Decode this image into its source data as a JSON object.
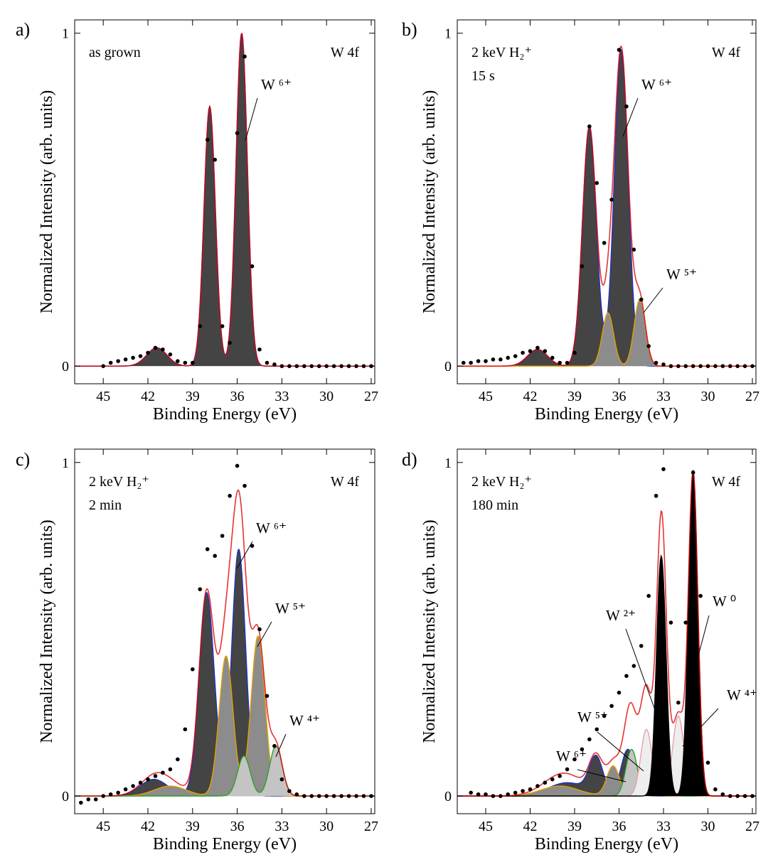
{
  "chart_data": [
    {
      "type": "line",
      "panel_label": "a)",
      "notes": [
        "as grown"
      ],
      "region": "W 4f",
      "xlabel": "Binding Energy (eV)",
      "ylabel": "Normalized Intensity (arb. units)",
      "xlim": [
        46.92,
        26.76
      ],
      "ylim": [
        -0.053,
        1.04
      ],
      "xticks": [
        45,
        42,
        39,
        36,
        33,
        30,
        27
      ],
      "yticks": [
        0,
        1
      ],
      "fit_color": "#e00000",
      "measured": {
        "x": [
          45,
          44.5,
          44,
          43.5,
          43,
          42.5,
          42,
          41.5,
          41,
          40.5,
          40,
          39.5,
          39,
          38.5,
          38,
          37.5,
          37,
          36.5,
          36,
          35.5,
          35,
          34.5,
          34,
          33.5,
          33,
          32.5,
          32,
          31.5,
          31,
          30.5,
          30,
          29.5,
          29,
          28.5,
          28,
          27.5,
          27
        ],
        "values": [
          0,
          0.01,
          0.015,
          0.02,
          0.025,
          0.03,
          0.04,
          0.055,
          0.05,
          0.035,
          0.015,
          0.01,
          0.01,
          0.12,
          0.68,
          0.62,
          0.12,
          0.07,
          0.7,
          0.93,
          0.3,
          0.05,
          0.01,
          0.005,
          0,
          0,
          0,
          0,
          0,
          0,
          0,
          0,
          0,
          0,
          0,
          0,
          0
        ]
      },
      "components": [
        {
          "name": "W ⁶⁺",
          "color": "#2233bb",
          "fill": "#444444",
          "peaks": [
            {
              "center": 35.7,
              "height": 1.0,
              "fwhm": 0.9
            },
            {
              "center": 37.85,
              "height": 0.78,
              "fwhm": 0.9
            },
            {
              "center": 41.4,
              "height": 0.055,
              "fwhm": 1.6
            }
          ]
        }
      ]
    },
    {
      "type": "line",
      "panel_label": "b)",
      "notes": [
        "2 keV H₂⁺",
        "15 s"
      ],
      "region": "W 4f",
      "xlabel": "Binding Energy (eV)",
      "ylabel": "Normalized Intensity (arb. units)",
      "xlim": [
        46.92,
        26.76
      ],
      "ylim": [
        -0.053,
        1.04
      ],
      "xticks": [
        45,
        42,
        39,
        36,
        33,
        30,
        27
      ],
      "yticks": [
        0,
        1
      ],
      "fit_color": "#e00000",
      "measured": {
        "x": [
          46.5,
          46,
          45.5,
          45,
          44.5,
          44,
          43.5,
          43,
          42.5,
          42,
          41.5,
          41,
          40.5,
          40,
          39.5,
          39,
          38.5,
          38,
          37.5,
          37,
          36.5,
          36,
          35.5,
          35,
          34.5,
          34,
          33.5,
          33,
          32.5,
          32,
          31.5,
          31,
          30.5,
          30,
          29.5,
          29,
          28.5,
          28,
          27.5,
          27
        ],
        "values": [
          0.01,
          0.01,
          0.015,
          0.015,
          0.02,
          0.02,
          0.025,
          0.03,
          0.04,
          0.045,
          0.055,
          0.045,
          0.025,
          0.01,
          0.01,
          0.04,
          0.3,
          0.72,
          0.55,
          0.37,
          0.5,
          0.95,
          0.78,
          0.35,
          0.2,
          0.06,
          0.01,
          0.005,
          0,
          0,
          0,
          0,
          0,
          0,
          0,
          0,
          0,
          0,
          0,
          0
        ]
      },
      "components": [
        {
          "name": "W ⁶⁺",
          "color": "#2233bb",
          "fill": "#444444",
          "peaks": [
            {
              "center": 35.85,
              "height": 0.95,
              "fwhm": 1.1
            },
            {
              "center": 38.0,
              "height": 0.72,
              "fwhm": 1.1
            },
            {
              "center": 41.5,
              "height": 0.05,
              "fwhm": 1.6
            }
          ]
        },
        {
          "name": "W ⁵⁺",
          "color": "#e69f00",
          "fill": "#8c8c8c",
          "peaks": [
            {
              "center": 34.6,
              "height": 0.2,
              "fwhm": 0.9
            },
            {
              "center": 36.75,
              "height": 0.16,
              "fwhm": 0.9
            }
          ]
        }
      ]
    },
    {
      "type": "line",
      "panel_label": "c)",
      "notes": [
        "2 keV H₂⁺",
        "2 min"
      ],
      "region": "W 4f",
      "xlabel": "Binding Energy (eV)",
      "ylabel": "Normalized Intensity (arb. units)",
      "xlim": [
        46.92,
        26.76
      ],
      "ylim": [
        -0.053,
        1.04
      ],
      "xticks": [
        45,
        42,
        39,
        36,
        33,
        30,
        27
      ],
      "yticks": [
        0,
        1
      ],
      "fit_color": "#e00000",
      "measured": {
        "x": [
          46.5,
          46,
          45.5,
          45,
          44.5,
          44,
          43.5,
          43,
          42.5,
          42,
          41.5,
          41,
          40.5,
          40,
          39.5,
          39,
          38.5,
          38,
          37.5,
          37,
          36.5,
          36,
          35.5,
          35,
          34.5,
          34,
          33.5,
          33,
          32.5,
          32,
          31.5,
          31,
          30.5,
          30,
          29.5,
          29,
          28.5,
          28,
          27.5,
          27
        ],
        "values": [
          -0.02,
          -0.01,
          -0.01,
          0,
          0.005,
          0.01,
          0.02,
          0.03,
          0.04,
          0.05,
          0.06,
          0.07,
          0.08,
          0.11,
          0.2,
          0.38,
          0.62,
          0.74,
          0.72,
          0.78,
          0.9,
          0.99,
          0.93,
          0.75,
          0.5,
          0.3,
          0.15,
          0.05,
          0.015,
          0.005,
          0,
          0,
          0,
          0,
          0,
          0,
          0,
          0,
          0,
          0
        ]
      },
      "components": [
        {
          "name": "W ⁶⁺",
          "color": "#2233bb",
          "fill": "#444444",
          "peaks": [
            {
              "center": 35.9,
              "height": 0.74,
              "fwhm": 1.1
            },
            {
              "center": 38.05,
              "height": 0.61,
              "fwhm": 1.2
            },
            {
              "center": 41.6,
              "height": 0.05,
              "fwhm": 2.2
            }
          ]
        },
        {
          "name": "W ⁵⁺",
          "color": "#e69f00",
          "fill": "#8c8c8c",
          "peaks": [
            {
              "center": 34.6,
              "height": 0.48,
              "fwhm": 1.1
            },
            {
              "center": 36.75,
              "height": 0.42,
              "fwhm": 1.1
            },
            {
              "center": 40.5,
              "height": 0.03,
              "fwhm": 2.5
            }
          ]
        },
        {
          "name": "W ⁴⁺",
          "color": "#2ca02c",
          "fill": "#c4c4c4",
          "peaks": [
            {
              "center": 33.4,
              "height": 0.15,
              "fwhm": 1.0
            },
            {
              "center": 35.55,
              "height": 0.12,
              "fwhm": 1.0
            }
          ]
        }
      ]
    },
    {
      "type": "line",
      "panel_label": "d)",
      "notes": [
        "2 keV H₂⁺",
        "180 min"
      ],
      "region": "W 4f",
      "xlabel": "Binding Energy (eV)",
      "ylabel": "Normalized Intensity (arb. units)",
      "xlim": [
        46.92,
        26.76
      ],
      "ylim": [
        -0.053,
        1.04
      ],
      "xticks": [
        45,
        42,
        39,
        36,
        33,
        30,
        27
      ],
      "yticks": [
        0,
        1
      ],
      "fit_color": "#e00000",
      "measured": {
        "x": [
          46,
          45.5,
          45,
          44.5,
          44,
          43.5,
          43,
          42.5,
          42,
          41.5,
          41,
          40.5,
          40,
          39.5,
          39,
          38.5,
          38,
          37.5,
          37,
          36.5,
          36,
          35.5,
          35,
          34.5,
          34,
          33.5,
          33,
          32.5,
          32,
          31.5,
          31,
          30.5,
          30,
          29.5,
          29,
          28.5,
          28,
          27.5,
          27
        ],
        "values": [
          0.01,
          0.005,
          0.005,
          0,
          0,
          0.005,
          0.01,
          0.015,
          0.02,
          0.03,
          0.04,
          0.05,
          0.06,
          0.08,
          0.11,
          0.14,
          0.17,
          0.2,
          0.24,
          0.27,
          0.31,
          0.36,
          0.39,
          0.45,
          0.6,
          0.9,
          0.98,
          0.52,
          0.28,
          0.52,
          0.97,
          0.6,
          0.1,
          0.02,
          0.005,
          0,
          0,
          0,
          0
        ]
      },
      "components": [
        {
          "name": "W ⁶⁺",
          "color": "#2233bb",
          "fill": "#444444",
          "peaks": [
            {
              "center": 35.4,
              "height": 0.14,
              "fwhm": 1.1
            },
            {
              "center": 37.55,
              "height": 0.11,
              "fwhm": 1.1
            },
            {
              "center": 39.5,
              "height": 0.04,
              "fwhm": 3.0
            }
          ]
        },
        {
          "name": "W ⁵⁺",
          "color": "#e69f00",
          "fill": "#8c8c8c",
          "peaks": [
            {
              "center": 34.2,
              "height": 0.12,
              "fwhm": 1.0
            },
            {
              "center": 36.4,
              "height": 0.09,
              "fwhm": 1.0
            },
            {
              "center": 40.0,
              "height": 0.03,
              "fwhm": 3.0
            }
          ]
        },
        {
          "name": "W ⁴⁺",
          "color": "#2ca02c",
          "fill": "#c4c4c4",
          "peaks": [
            {
              "center": 33.0,
              "height": 0.13,
              "fwhm": 0.9
            },
            {
              "center": 35.15,
              "height": 0.14,
              "fwhm": 0.9
            }
          ]
        },
        {
          "name": "W ²⁺",
          "color": "#e8a0a8",
          "fill": "#eeeeee",
          "peaks": [
            {
              "center": 32.0,
              "height": 0.24,
              "fwhm": 0.9
            },
            {
              "center": 34.15,
              "height": 0.2,
              "fwhm": 0.9
            }
          ]
        },
        {
          "name": "W ⁰",
          "color": "#000000",
          "fill": "#000000",
          "peaks": [
            {
              "center": 31.0,
              "height": 0.97,
              "fwhm": 0.75
            },
            {
              "center": 33.15,
              "height": 0.72,
              "fwhm": 0.75
            }
          ]
        }
      ]
    }
  ]
}
